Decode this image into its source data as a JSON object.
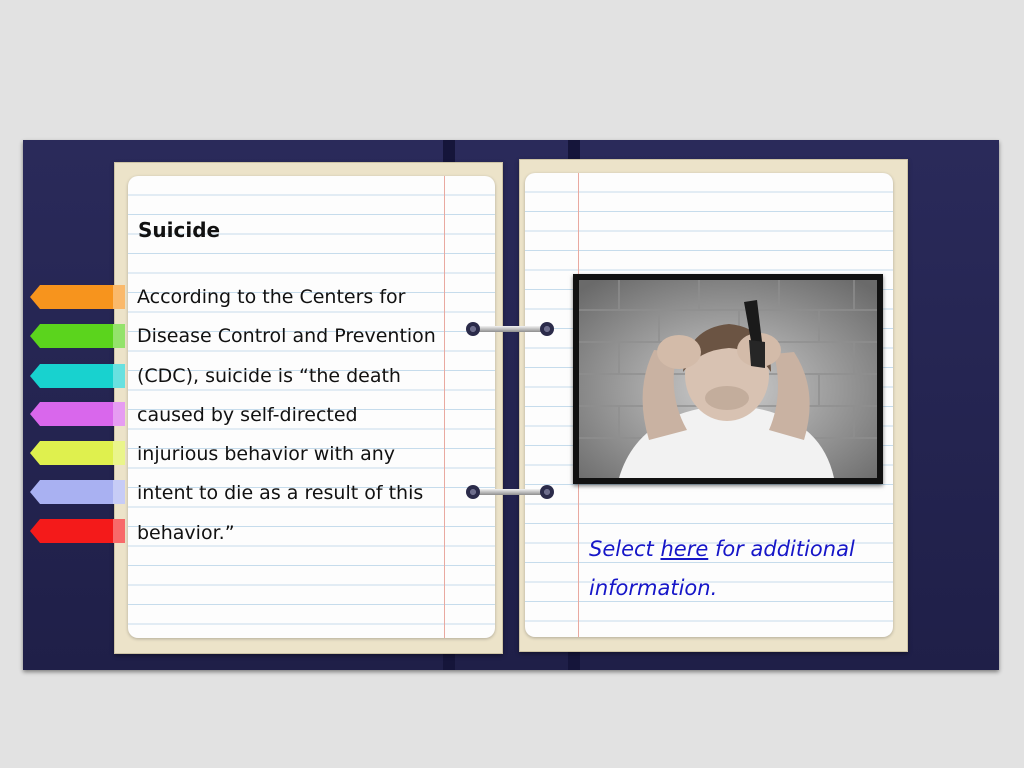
{
  "left_page": {
    "heading": "Suicide",
    "paragraph": "According to the Centers for Disease Control and Prevention (CDC), suicide is “the death caused by self-directed injurious behavior with any intent to die as a result of this behavior.”"
  },
  "right_page": {
    "image_icon": "photo-of-distressed-teen-holding-gun-icon",
    "link_prefix": "Select ",
    "link_label": "here",
    "link_suffix": " for additional information."
  },
  "tabs": [
    {
      "color": "#f7941d"
    },
    {
      "color": "#5bd41d"
    },
    {
      "color": "#18d2cf"
    },
    {
      "color": "#d967ec"
    },
    {
      "color": "#dff04e"
    },
    {
      "color": "#a9b1f2"
    },
    {
      "color": "#f41a1a"
    }
  ]
}
